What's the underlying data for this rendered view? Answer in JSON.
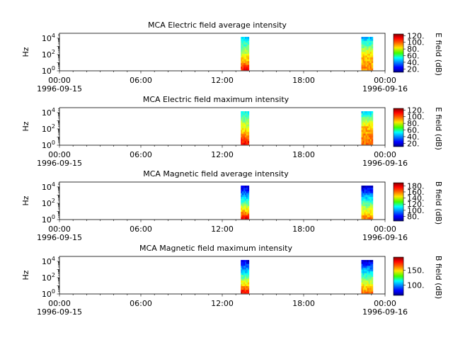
{
  "chart_data": [
    {
      "type": "heatmap",
      "title": "MCA  Electric field average intensity",
      "ylabel": "Hz",
      "yscale": "log",
      "yticks": [
        "10^0",
        "10^2",
        "10^4"
      ],
      "xlim": [
        "1996-09-15 00:00",
        "1996-09-16 00:00"
      ],
      "xticks": [
        [
          "00:00",
          "1996-09-15"
        ],
        [
          "06:00",
          ""
        ],
        [
          "12:00",
          ""
        ],
        [
          "18:00",
          ""
        ],
        [
          "00:00",
          "1996-09-16"
        ]
      ],
      "colorbar": {
        "label": "E field (dB)",
        "ticks": [
          20,
          40,
          60,
          80,
          100,
          120
        ],
        "range": [
          10,
          125
        ]
      },
      "bursts": [
        {
          "start": "13:22",
          "end": "13:58",
          "low_level": 110,
          "mid_level": 75,
          "high_level": 50
        },
        {
          "start": "22:15",
          "end": "23:06",
          "low_level": 95,
          "mid_level": 85,
          "high_level": 45
        }
      ]
    },
    {
      "type": "heatmap",
      "title": "MCA  Electric field maximum intensity",
      "ylabel": "Hz",
      "yscale": "log",
      "yticks": [
        "10^0",
        "10^2",
        "10^4"
      ],
      "xlim": [
        "1996-09-15 00:00",
        "1996-09-16 00:00"
      ],
      "xticks": [
        [
          "00:00",
          "1996-09-15"
        ],
        [
          "06:00",
          ""
        ],
        [
          "12:00",
          ""
        ],
        [
          "18:00",
          ""
        ],
        [
          "00:00",
          "1996-09-16"
        ]
      ],
      "colorbar": {
        "label": "E field (dB)",
        "ticks": [
          20,
          40,
          60,
          80,
          100,
          120
        ],
        "range": [
          10,
          125
        ]
      },
      "bursts": [
        {
          "start": "13:22",
          "end": "13:58",
          "low_level": 112,
          "mid_level": 80,
          "high_level": 55
        },
        {
          "start": "22:15",
          "end": "23:06",
          "low_level": 98,
          "mid_level": 90,
          "high_level": 50
        }
      ]
    },
    {
      "type": "heatmap",
      "title": "MCA  Magnetic field average intensity",
      "ylabel": "Hz",
      "yscale": "log",
      "yticks": [
        "10^0",
        "10^2",
        "10^4"
      ],
      "xlim": [
        "1996-09-15 00:00",
        "1996-09-16 00:00"
      ],
      "xticks": [
        [
          "00:00",
          "1996-09-15"
        ],
        [
          "06:00",
          ""
        ],
        [
          "12:00",
          ""
        ],
        [
          "18:00",
          ""
        ],
        [
          "00:00",
          "1996-09-16"
        ]
      ],
      "colorbar": {
        "label": "B field (dB)",
        "ticks": [
          80,
          100,
          120,
          140,
          160,
          180
        ],
        "range": [
          65,
          190
        ]
      },
      "bursts": [
        {
          "start": "13:22",
          "end": "13:58",
          "low_level": 175,
          "mid_level": 120,
          "high_level": 75
        },
        {
          "start": "22:15",
          "end": "23:06",
          "low_level": 160,
          "mid_level": 120,
          "high_level": 72
        }
      ]
    },
    {
      "type": "heatmap",
      "title": "MCA  Magnetic field maximum intensity",
      "ylabel": "Hz",
      "yscale": "log",
      "yticks": [
        "10^0",
        "10^2",
        "10^4"
      ],
      "xlim": [
        "1996-09-15 00:00",
        "1996-09-16 00:00"
      ],
      "xticks": [
        [
          "00:00",
          "1996-09-15"
        ],
        [
          "06:00",
          ""
        ],
        [
          "12:00",
          ""
        ],
        [
          "18:00",
          ""
        ],
        [
          "00:00",
          "1996-09-16"
        ]
      ],
      "colorbar": {
        "label": "B field (dB)",
        "ticks": [
          100,
          150
        ],
        "range": [
          65,
          195
        ]
      },
      "bursts": [
        {
          "start": "13:22",
          "end": "13:58",
          "low_level": 180,
          "mid_level": 125,
          "high_level": 78
        },
        {
          "start": "22:15",
          "end": "23:06",
          "low_level": 165,
          "mid_level": 125,
          "high_level": 75
        }
      ]
    }
  ]
}
